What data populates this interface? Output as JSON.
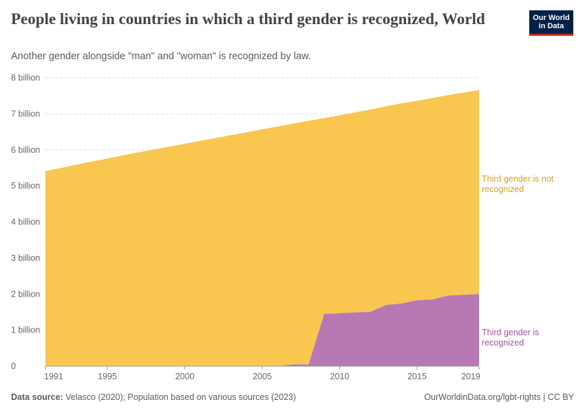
{
  "title": "People living in countries in which a third gender is recognized, World",
  "subtitle": "Another gender alongside \"man\" and \"woman\" is recognized by law.",
  "logo": {
    "line1": "Our World",
    "line2": "in Data"
  },
  "footer": {
    "source_label": "Data source:",
    "source_text": "Velasco (2020); Population based on various sources (2023)",
    "link_text": "OurWorldinData.org/lgbt-rights | CC BY"
  },
  "colors": {
    "not_recognized": "#F9C74F",
    "recognized": "#B778B4",
    "not_recognized_text": "#D9A21B",
    "recognized_text": "#A0569D",
    "grid": "#dddddd",
    "axis": "#999999"
  },
  "chart_data": {
    "type": "area",
    "stacked": true,
    "title": "People living in countries in which a third gender is recognized, World",
    "x": [
      1991,
      1992,
      1993,
      1994,
      1995,
      1996,
      1997,
      1998,
      1999,
      2000,
      2001,
      2002,
      2003,
      2004,
      2005,
      2006,
      2007,
      2008,
      2009,
      2010,
      2011,
      2012,
      2013,
      2014,
      2015,
      2016,
      2017,
      2018,
      2019
    ],
    "series": [
      {
        "name": "Third gender is recognized",
        "label_lines": [
          "Third gender is",
          "recognized"
        ],
        "values": [
          0,
          0,
          0,
          0,
          0,
          0,
          0,
          0,
          0,
          0,
          0,
          0,
          0,
          0,
          0,
          0,
          0.05,
          0.05,
          1.45,
          1.47,
          1.49,
          1.51,
          1.7,
          1.74,
          1.83,
          1.85,
          1.96,
          1.98,
          2.0
        ]
      },
      {
        "name": "Third gender is not recognized",
        "label_lines": [
          "Third gender is not",
          "recognized"
        ],
        "values": [
          5.41,
          5.5,
          5.59,
          5.68,
          5.76,
          5.85,
          5.93,
          6.01,
          6.09,
          6.17,
          6.25,
          6.33,
          6.41,
          6.49,
          6.57,
          6.65,
          6.68,
          6.76,
          5.43,
          5.49,
          5.55,
          5.61,
          5.51,
          5.55,
          5.53,
          5.59,
          5.56,
          5.61,
          5.66
        ]
      }
    ],
    "y_ticks": [
      0,
      1,
      2,
      3,
      4,
      5,
      6,
      7,
      8
    ],
    "y_tick_labels": [
      "0",
      "1 billion",
      "2 billion",
      "3 billion",
      "4 billion",
      "5 billion",
      "6 billion",
      "7 billion",
      "8 billion"
    ],
    "x_ticks": [
      1991,
      1995,
      2000,
      2005,
      2010,
      2015,
      2019
    ],
    "x_tick_labels": [
      "1991",
      "1995",
      "2000",
      "2005",
      "2010",
      "2015",
      "2019"
    ],
    "ylim": [
      0,
      8
    ],
    "xlim": [
      1991,
      2019
    ],
    "xlabel": "",
    "ylabel": "",
    "unit": "billion people",
    "legend_placement": "right (inline labels)"
  }
}
